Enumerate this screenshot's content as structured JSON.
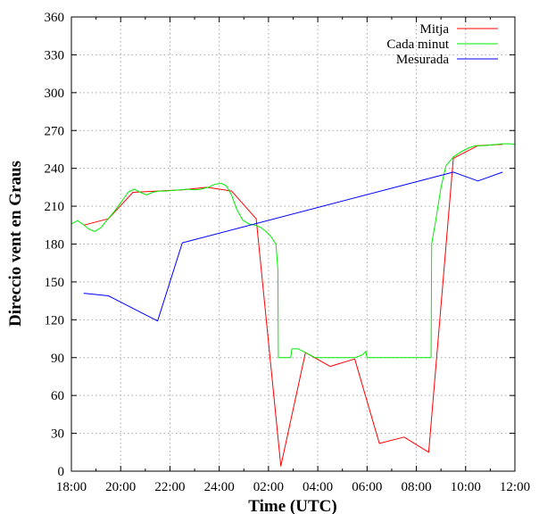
{
  "chart_data": {
    "type": "line",
    "xlabel": "Time (UTC)",
    "ylabel": "Direccio vent en Graus",
    "x_tick_labels": [
      "18:00",
      "20:00",
      "22:00",
      "24:00",
      "02:00",
      "04:00",
      "06:00",
      "08:00",
      "10:00",
      "12:00"
    ],
    "x_tick_hours": [
      0,
      2,
      4,
      6,
      8,
      10,
      12,
      14,
      16,
      18
    ],
    "xlim_hours_since_1800": [
      0,
      18
    ],
    "ylim": [
      0,
      360
    ],
    "y_ticks": [
      0,
      30,
      60,
      90,
      120,
      150,
      180,
      210,
      240,
      270,
      300,
      330,
      360
    ],
    "grid": true,
    "legend_position": "top-right",
    "series": [
      {
        "name": "Mitja",
        "color": "#ff0000",
        "points": [
          [
            0.5,
            195
          ],
          [
            1.5,
            200
          ],
          [
            2.5,
            221
          ],
          [
            3.5,
            222
          ],
          [
            4.5,
            223
          ],
          [
            5.5,
            225
          ],
          [
            6.5,
            222
          ],
          [
            7.5,
            200
          ],
          [
            8.5,
            4
          ],
          [
            9.5,
            94
          ],
          [
            10.5,
            83
          ],
          [
            11.5,
            89
          ],
          [
            12.5,
            22
          ],
          [
            13.5,
            27
          ],
          [
            14.5,
            15
          ],
          [
            15.5,
            248
          ],
          [
            16.5,
            258
          ],
          [
            17.5,
            259
          ]
        ]
      },
      {
        "name": "Cada minut",
        "color": "#00ee00",
        "points": [
          [
            0,
            196
          ],
          [
            0.25,
            198.5
          ],
          [
            0.45,
            196
          ],
          [
            0.7,
            192
          ],
          [
            0.95,
            190
          ],
          [
            1.2,
            193
          ],
          [
            1.45,
            199
          ],
          [
            1.75,
            206
          ],
          [
            2.05,
            214
          ],
          [
            2.3,
            221
          ],
          [
            2.55,
            223.5
          ],
          [
            2.8,
            221
          ],
          [
            3.05,
            219
          ],
          [
            3.3,
            221
          ],
          [
            3.55,
            222
          ],
          [
            3.8,
            222
          ],
          [
            4.1,
            222.5
          ],
          [
            4.4,
            223
          ],
          [
            4.7,
            223.5
          ],
          [
            5.0,
            223
          ],
          [
            5.25,
            223.5
          ],
          [
            5.55,
            225
          ],
          [
            5.85,
            227.5
          ],
          [
            6.1,
            228
          ],
          [
            6.3,
            226
          ],
          [
            6.5,
            219
          ],
          [
            6.7,
            208
          ],
          [
            6.95,
            199
          ],
          [
            7.2,
            196
          ],
          [
            7.45,
            195
          ],
          [
            7.7,
            193
          ],
          [
            7.9,
            190
          ],
          [
            8.1,
            186
          ],
          [
            8.3,
            180
          ],
          [
            8.38,
            160
          ],
          [
            8.4,
            90
          ],
          [
            8.9,
            90
          ],
          [
            8.95,
            97
          ],
          [
            9.2,
            97
          ],
          [
            9.5,
            94
          ],
          [
            9.9,
            90
          ],
          [
            10.5,
            90
          ],
          [
            11.0,
            90
          ],
          [
            11.5,
            90
          ],
          [
            11.8,
            92
          ],
          [
            11.95,
            95
          ],
          [
            12.0,
            90
          ],
          [
            12.6,
            90
          ],
          [
            13.5,
            90
          ],
          [
            14.6,
            90
          ],
          [
            14.62,
            180
          ],
          [
            14.8,
            200
          ],
          [
            15.0,
            225
          ],
          [
            15.2,
            242
          ],
          [
            15.5,
            249
          ],
          [
            15.8,
            253
          ],
          [
            16.1,
            256
          ],
          [
            16.4,
            258
          ],
          [
            16.7,
            258
          ],
          [
            17.0,
            258.5
          ],
          [
            17.3,
            259
          ],
          [
            17.5,
            259.5
          ],
          [
            17.8,
            259.5
          ],
          [
            18.0,
            259
          ]
        ]
      },
      {
        "name": "Mesurada",
        "color": "#0000ff",
        "points": [
          [
            0.5,
            141
          ],
          [
            1.5,
            139
          ],
          [
            3.5,
            119
          ],
          [
            4.5,
            181
          ],
          [
            15.5,
            237
          ],
          [
            16.5,
            230
          ],
          [
            17.5,
            237
          ]
        ]
      }
    ]
  }
}
